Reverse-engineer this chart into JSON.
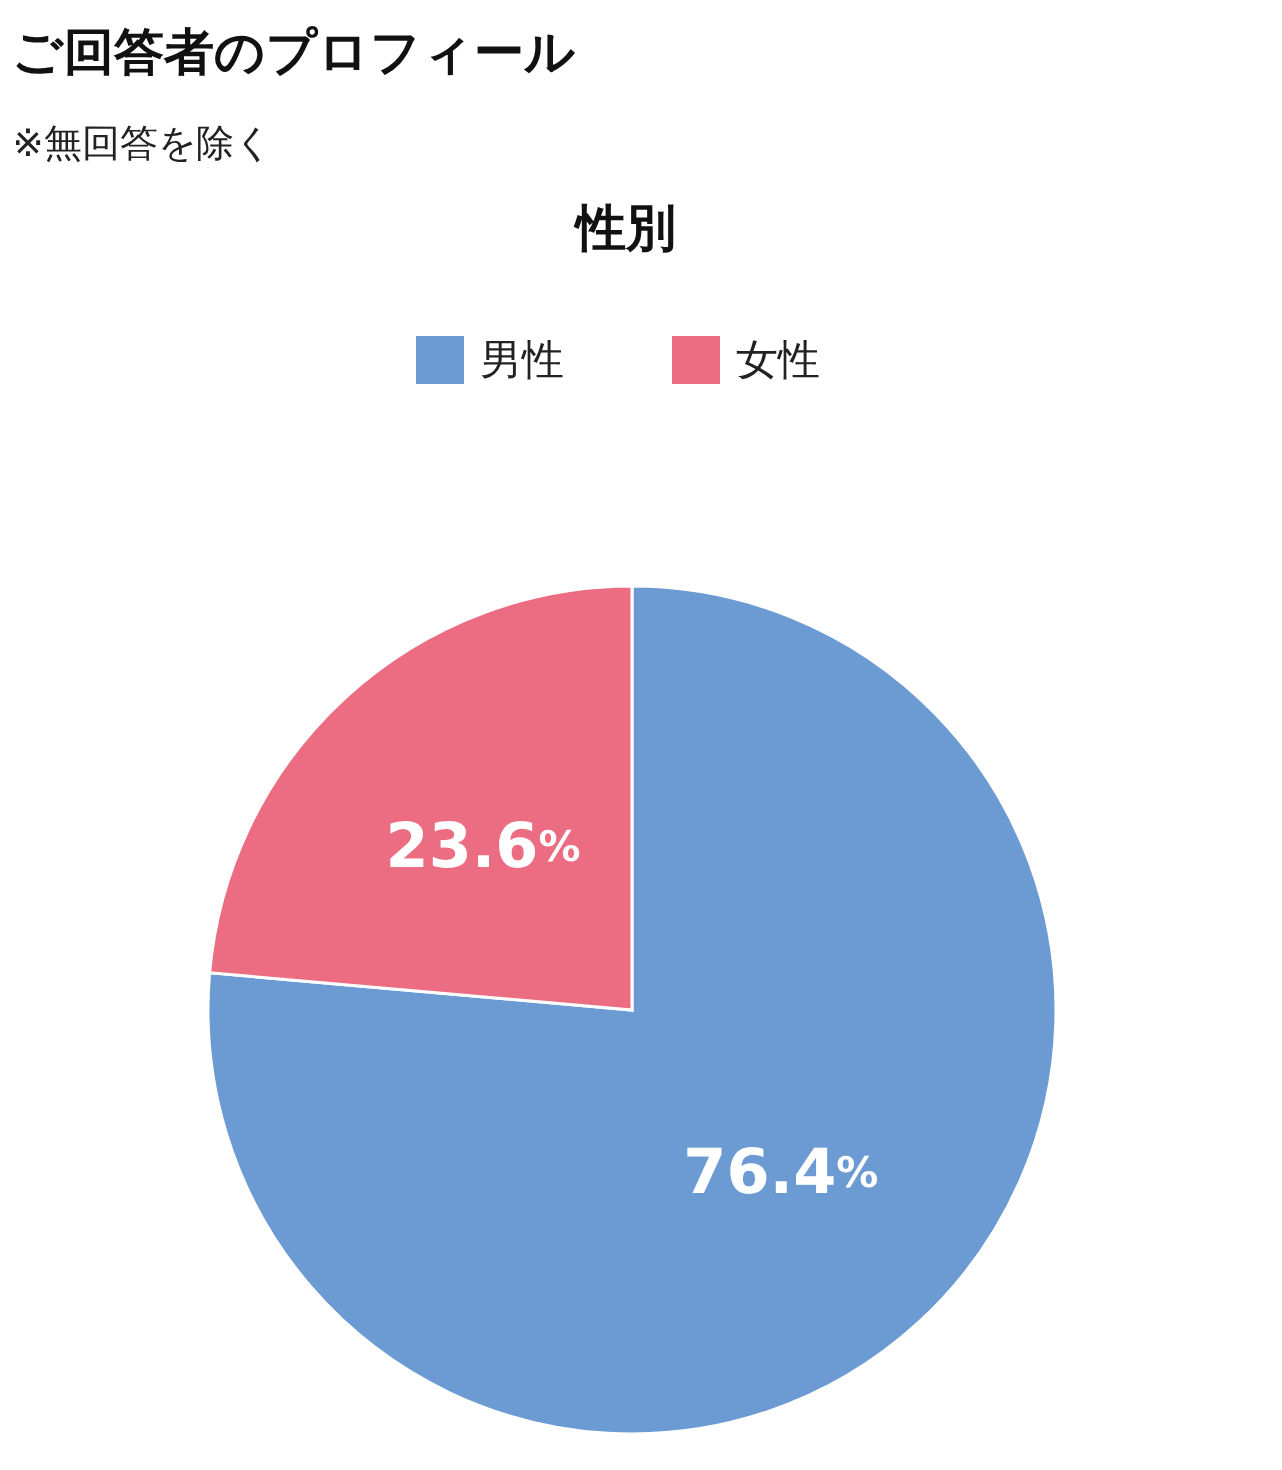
{
  "chart_data": {
    "type": "pie",
    "title": "ご回答者のプロフィール",
    "subtitle": "性別",
    "annotations": [
      "※無回答を除く"
    ],
    "categories": [
      "男性",
      "女性"
    ],
    "values": [
      76.4,
      23.6
    ],
    "colors": [
      "#6b9bd2",
      "#ec6d82"
    ],
    "value_labels": [
      "76.4%",
      "23.6%"
    ],
    "legend": "top"
  }
}
